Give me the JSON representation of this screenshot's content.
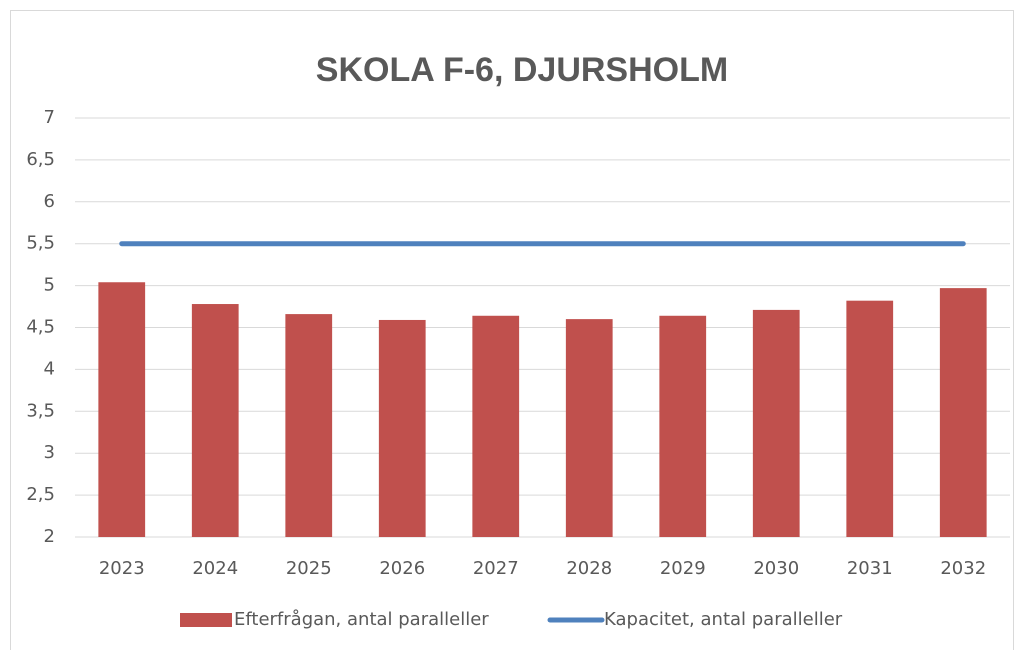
{
  "chart_data": {
    "type": "combo",
    "title": "SKOLA F-6, DJURSHOLM",
    "categories": [
      "2023",
      "2024",
      "2025",
      "2026",
      "2027",
      "2028",
      "2029",
      "2030",
      "2031",
      "2032"
    ],
    "series": [
      {
        "name": "Efterfrågan, antal paralleller",
        "type": "bar",
        "color": "#c0504d",
        "values": [
          5.04,
          4.78,
          4.66,
          4.59,
          4.64,
          4.6,
          4.64,
          4.71,
          4.82,
          4.97
        ]
      },
      {
        "name": "Kapacitet, antal paralleller",
        "type": "line",
        "color": "#4f81bd",
        "values": [
          5.5,
          5.5,
          5.5,
          5.5,
          5.5,
          5.5,
          5.5,
          5.5,
          5.5,
          5.5
        ]
      }
    ],
    "ylim": [
      2,
      7
    ],
    "yticks": [
      2,
      {
        "value": 2.5,
        "label": "2,5"
      },
      3,
      {
        "value": 3.5,
        "label": "3,5"
      },
      4,
      {
        "value": 4.5,
        "label": "4,5"
      },
      5,
      {
        "value": 5.5,
        "label": "5,5"
      },
      6,
      {
        "value": 6.5,
        "label": "6,5"
      },
      7
    ],
    "grid": true,
    "legend": "bottom"
  }
}
